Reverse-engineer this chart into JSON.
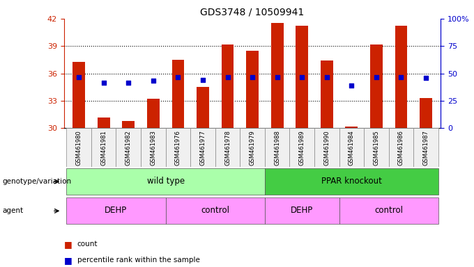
{
  "title": "GDS3748 / 10509941",
  "samples": [
    "GSM461980",
    "GSM461981",
    "GSM461982",
    "GSM461983",
    "GSM461976",
    "GSM461977",
    "GSM461978",
    "GSM461979",
    "GSM461988",
    "GSM461989",
    "GSM461990",
    "GSM461984",
    "GSM461985",
    "GSM461986",
    "GSM461987"
  ],
  "bar_values": [
    37.3,
    31.2,
    30.8,
    33.2,
    37.5,
    34.5,
    39.2,
    38.5,
    41.5,
    41.2,
    37.4,
    30.2,
    39.2,
    41.2,
    33.3
  ],
  "blue_values": [
    35.6,
    35.0,
    35.0,
    35.2,
    35.6,
    35.3,
    35.6,
    35.6,
    35.6,
    35.6,
    35.6,
    34.7,
    35.6,
    35.6,
    35.5
  ],
  "ylim_left": [
    30,
    42
  ],
  "ylim_right": [
    0,
    100
  ],
  "yticks_left": [
    30,
    33,
    36,
    39,
    42
  ],
  "yticks_right": [
    0,
    25,
    50,
    75,
    100
  ],
  "bar_color": "#CC2200",
  "blue_color": "#0000CC",
  "wt_color": "#AAFFAA",
  "ko_color": "#44CC44",
  "agent_color": "#FF99FF",
  "legend_count_color": "#CC2200",
  "legend_pct_color": "#0000CC",
  "bg_color": "#F0F0F0"
}
